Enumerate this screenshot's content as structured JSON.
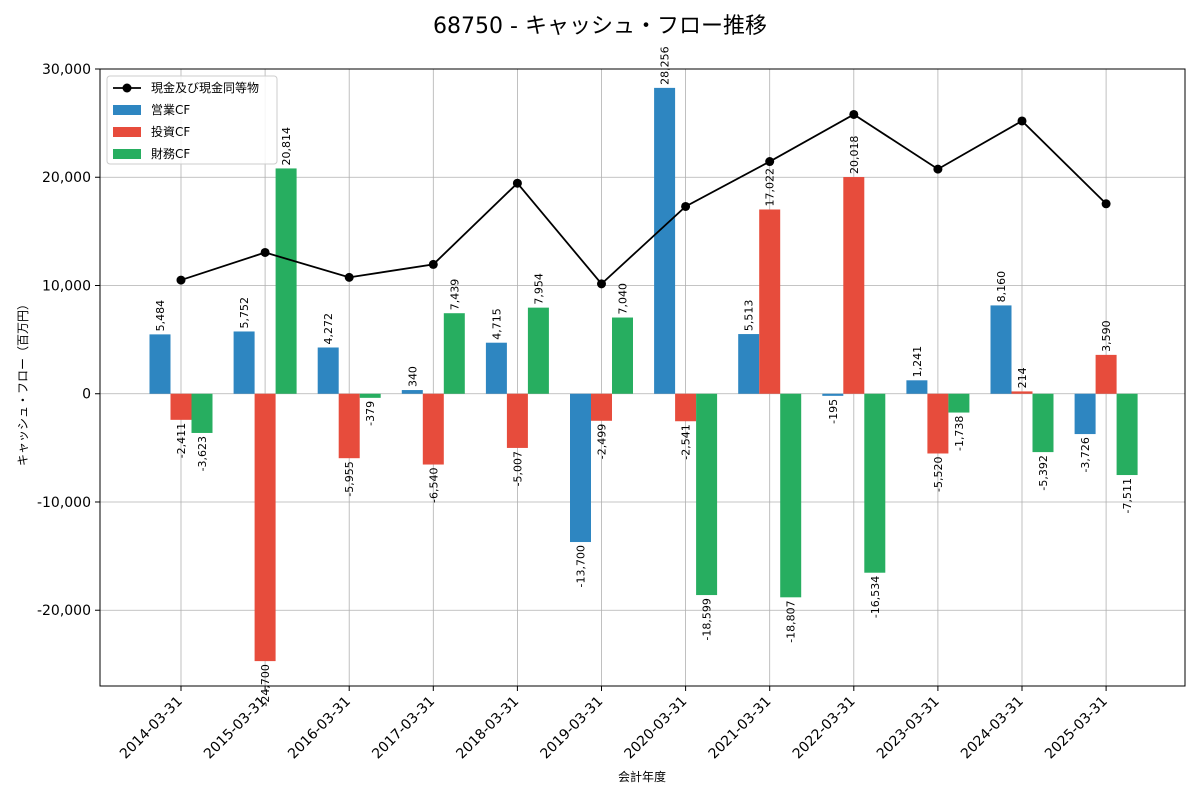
{
  "chart_data": {
    "type": "bar",
    "title": "68750 - キャッシュ・フロー推移",
    "xlabel": "会計年度",
    "ylabel": "キャッシュ・フロー（百万円）",
    "ylim": [
      -27000,
      30000
    ],
    "yticks": [
      -20000,
      -10000,
      0,
      10000,
      20000,
      30000
    ],
    "ytick_labels": [
      "-20,000",
      "-10,000",
      "0",
      "10,000",
      "20,000",
      "30,000"
    ],
    "grid": true,
    "legend_position": "top-left",
    "categories": [
      "2014-03-31",
      "2015-03-31",
      "2016-03-31",
      "2017-03-31",
      "2018-03-31",
      "2019-03-31",
      "2020-03-31",
      "2021-03-31",
      "2022-03-31",
      "2023-03-31",
      "2024-03-31",
      "2025-03-31"
    ],
    "series": [
      {
        "name": "営業CF",
        "type": "bar",
        "color": "#2e86c1",
        "values": [
          5484,
          5752,
          4272,
          340,
          4715,
          -13700,
          28256,
          5513,
          -195,
          1241,
          8160,
          -3726
        ],
        "labels": [
          "5,484",
          "5,752",
          "4,272",
          "340",
          "4,715",
          "-13,700",
          "28,256",
          "5,513",
          "-195",
          "1,241",
          "8,160",
          "-3,726"
        ]
      },
      {
        "name": "投資CF",
        "type": "bar",
        "color": "#e74c3c",
        "values": [
          -2411,
          -24700,
          -5955,
          -6540,
          -5007,
          -2499,
          -2541,
          17022,
          20018,
          -5520,
          214,
          3590
        ],
        "labels": [
          "-2,411",
          "-24,700",
          "-5,955",
          "-6,540",
          "-5,007",
          "-2,499",
          "-2,541",
          "17,022",
          "20,018",
          "-5,520",
          "214",
          "3,590"
        ]
      },
      {
        "name": "財務CF",
        "type": "bar",
        "color": "#27ae60",
        "values": [
          -3623,
          20814,
          -379,
          7439,
          7954,
          7040,
          -18599,
          -18807,
          -16534,
          -1738,
          -5392,
          -7511
        ],
        "labels": [
          "-3,623",
          "20,814",
          "-379",
          "7,439",
          "7,954",
          "7,040",
          "-18,599",
          "-18,807",
          "-16,534",
          "-1,738",
          "-5,392",
          "-7,511"
        ]
      },
      {
        "name": "現金及び現金同等物",
        "type": "line",
        "color": "#000000",
        "values": [
          10500,
          13050,
          10750,
          11950,
          19450,
          10150,
          17300,
          21450,
          25800,
          20750,
          25200,
          17550
        ]
      }
    ]
  }
}
